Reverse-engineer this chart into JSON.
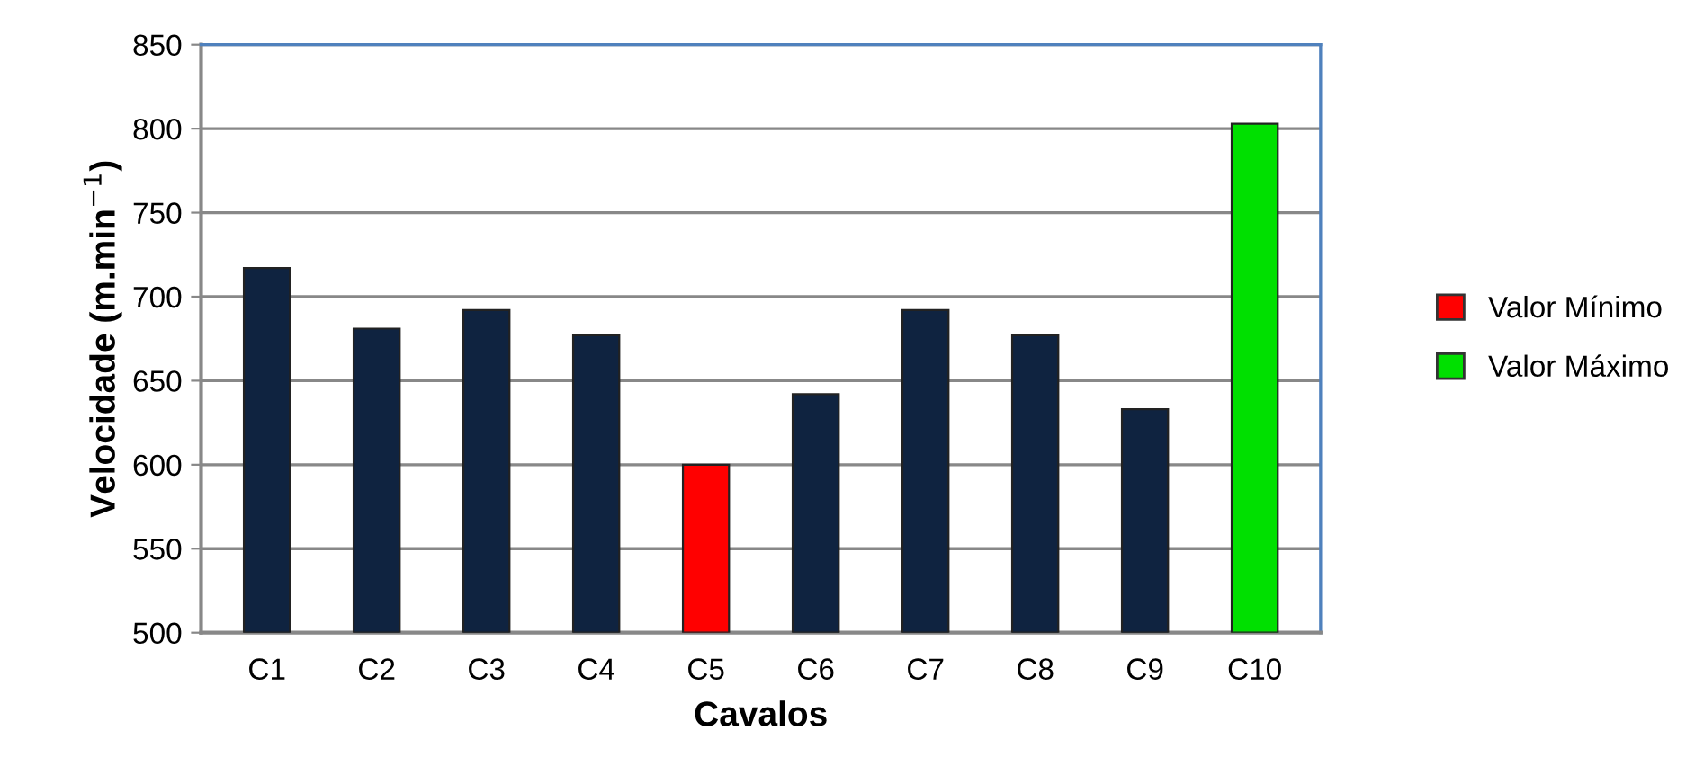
{
  "chart_data": {
    "type": "bar",
    "xlabel": "Cavalos",
    "ylabel": "Velocidade (m.min$^{−1}$)",
    "categories": [
      "C1",
      "C2",
      "C3",
      "C4",
      "C5",
      "C6",
      "C7",
      "C8",
      "C9",
      "C10"
    ],
    "series": [
      {
        "color": "#0f2340",
        "values": [
          717,
          681,
          692,
          677,
          null,
          642,
          692,
          677,
          633,
          null
        ]
      },
      {
        "name": "Valor Mínimo",
        "color": "#ff0000",
        "values": [
          null,
          null,
          null,
          null,
          600,
          null,
          null,
          null,
          null,
          null
        ]
      },
      {
        "name": "Valor Máximo",
        "color": "#00e000",
        "values": [
          null,
          null,
          null,
          null,
          null,
          null,
          null,
          null,
          null,
          803
        ]
      }
    ],
    "ylim": [
      500,
      850
    ],
    "yticks": [
      500,
      550,
      600,
      650,
      700,
      750,
      800,
      850
    ],
    "grid": "y",
    "legend": "right"
  }
}
